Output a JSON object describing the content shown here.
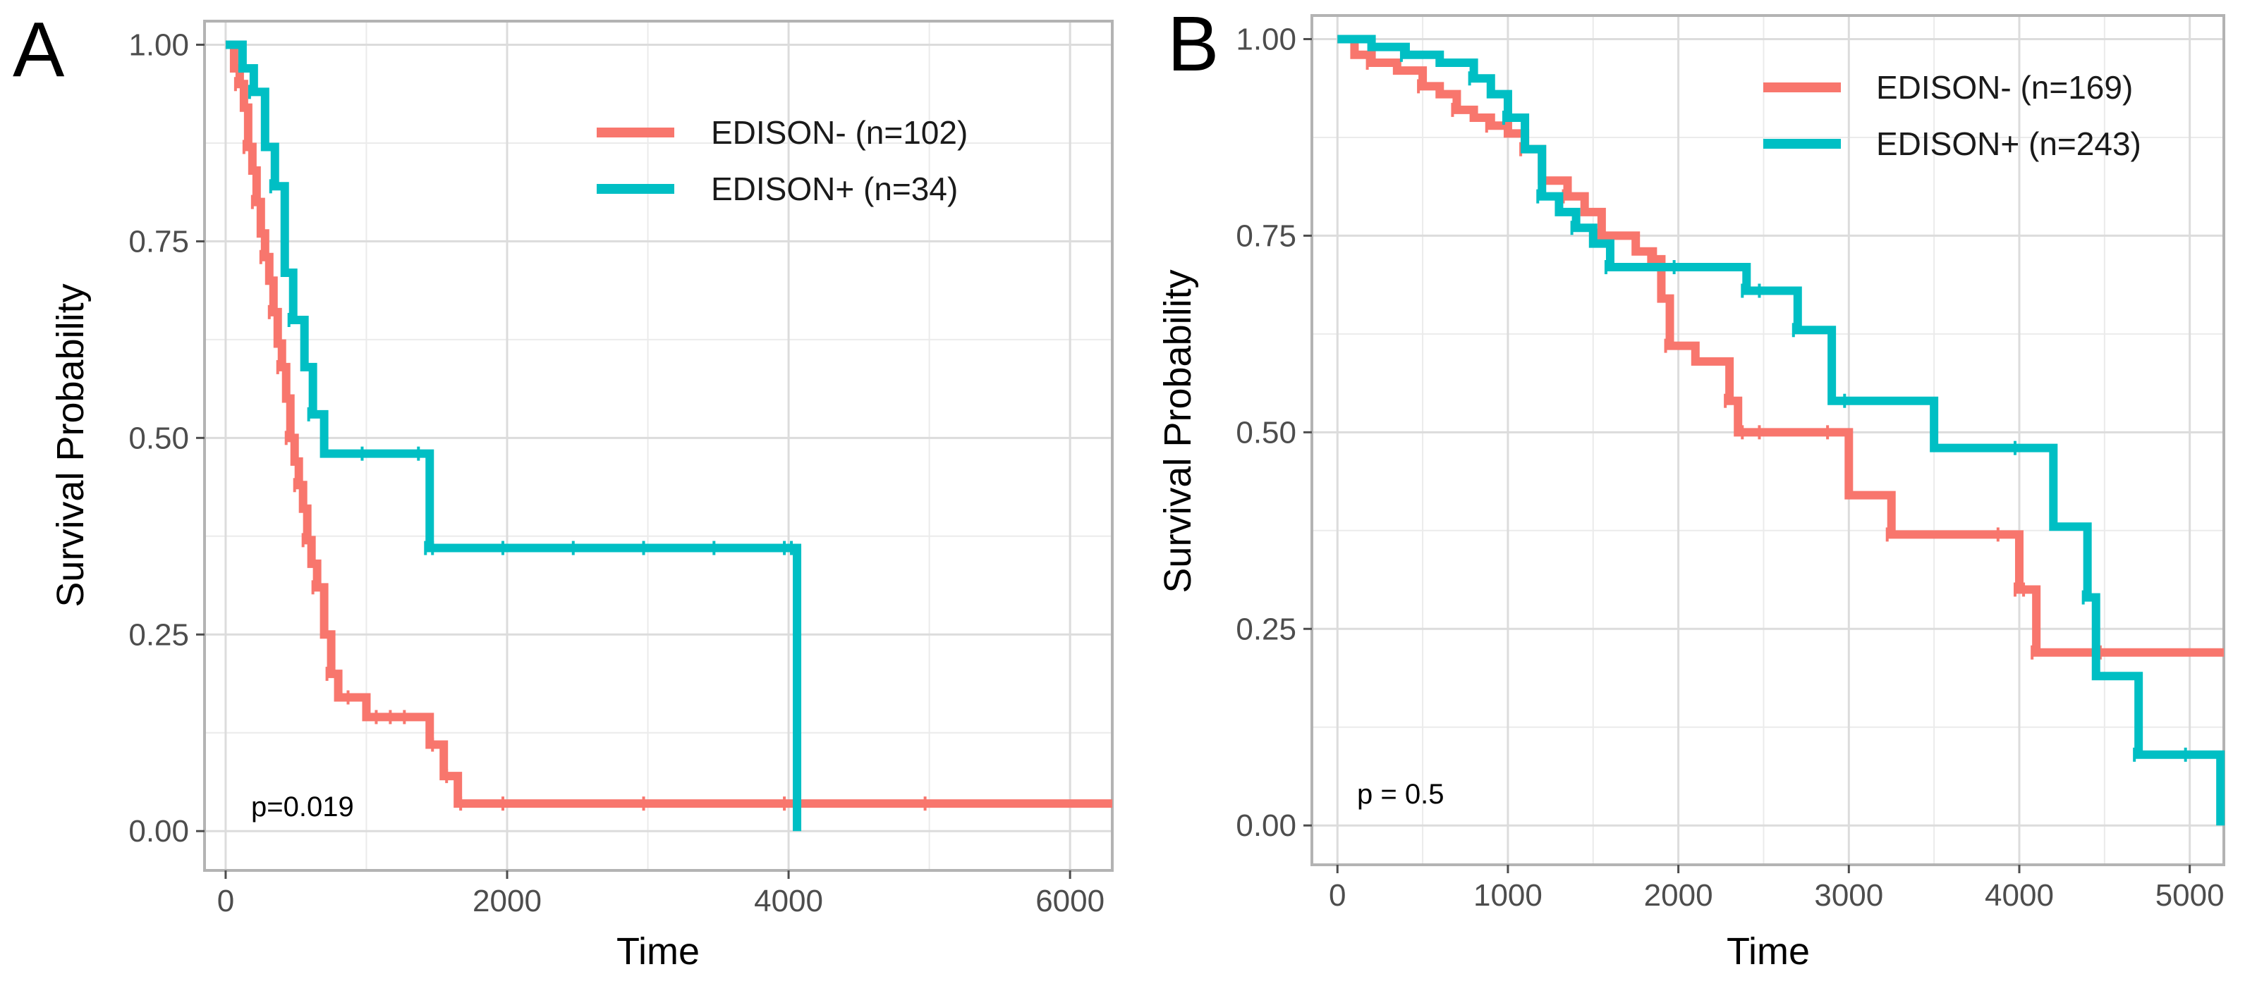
{
  "chart_data": [
    {
      "panel": "A",
      "type": "line",
      "subtype": "kaplan-meier step",
      "xlabel": "Time",
      "ylabel": "Survival Probability",
      "xlim": [
        -150,
        6300
      ],
      "ylim": [
        -0.05,
        1.03
      ],
      "xticks": [
        0,
        2000,
        4000,
        6000
      ],
      "xtick_labels": [
        "0",
        "2000",
        "4000",
        "6000"
      ],
      "yticks": [
        0,
        0.25,
        0.5,
        0.75,
        1
      ],
      "ytick_labels": [
        "0.00",
        "0.25",
        "0.50",
        "0.75",
        "1.00"
      ],
      "grid": true,
      "legend_position": "top-right",
      "pvalue": "p=0.019",
      "series": [
        {
          "name": "EDISON- (n=102)",
          "color": "#F8766D",
          "x": [
            0,
            60,
            100,
            130,
            160,
            190,
            220,
            250,
            280,
            310,
            340,
            370,
            400,
            430,
            460,
            490,
            520,
            550,
            580,
            610,
            650,
            700,
            750,
            800,
            900,
            1000,
            1100,
            1200,
            1300,
            1450,
            1500,
            1550,
            1600,
            1650,
            1700,
            2000,
            3000,
            4000,
            5000,
            6300
          ],
          "y": [
            1.0,
            0.97,
            0.95,
            0.92,
            0.87,
            0.84,
            0.8,
            0.76,
            0.73,
            0.7,
            0.66,
            0.62,
            0.59,
            0.55,
            0.5,
            0.47,
            0.44,
            0.41,
            0.37,
            0.34,
            0.31,
            0.25,
            0.2,
            0.17,
            0.17,
            0.145,
            0.145,
            0.145,
            0.145,
            0.11,
            0.11,
            0.07,
            0.07,
            0.035,
            0.035,
            0.035,
            0.035,
            0.035,
            0.035,
            0.035
          ]
        },
        {
          "name": "EDISON+ (n=34)",
          "color": "#00BFC4",
          "x": [
            0,
            120,
            200,
            280,
            350,
            420,
            480,
            560,
            620,
            700,
            1000,
            1400,
            1450,
            1500,
            2000,
            2500,
            3000,
            3500,
            4000,
            4050,
            4060
          ],
          "y": [
            1.0,
            0.97,
            0.94,
            0.87,
            0.82,
            0.71,
            0.65,
            0.59,
            0.53,
            0.48,
            0.48,
            0.48,
            0.36,
            0.36,
            0.36,
            0.36,
            0.36,
            0.36,
            0.36,
            0.36,
            0.0
          ]
        }
      ]
    },
    {
      "panel": "B",
      "type": "line",
      "subtype": "kaplan-meier step",
      "xlabel": "Time",
      "ylabel": "Survival Probability",
      "xlim": [
        -150,
        5200
      ],
      "ylim": [
        -0.05,
        1.03
      ],
      "xticks": [
        0,
        1000,
        2000,
        3000,
        4000,
        5000
      ],
      "xtick_labels": [
        "0",
        "1000",
        "2000",
        "3000",
        "4000",
        "5000"
      ],
      "yticks": [
        0,
        0.25,
        0.5,
        0.75,
        1
      ],
      "ytick_labels": [
        "0.00",
        "0.25",
        "0.50",
        "0.75",
        "1.00"
      ],
      "grid": true,
      "legend_position": "top-right",
      "pvalue": "p = 0.5",
      "series": [
        {
          "name": "EDISON- (n=169)",
          "color": "#F8766D",
          "x": [
            0,
            100,
            200,
            350,
            500,
            600,
            700,
            800,
            900,
            1000,
            1100,
            1200,
            1350,
            1450,
            1550,
            1750,
            1850,
            1900,
            1950,
            2100,
            2300,
            2350,
            2400,
            2500,
            2900,
            3000,
            3250,
            3900,
            4000,
            4050,
            4100,
            4500,
            5200
          ],
          "y": [
            1.0,
            0.98,
            0.97,
            0.96,
            0.94,
            0.93,
            0.91,
            0.9,
            0.89,
            0.88,
            0.86,
            0.82,
            0.8,
            0.78,
            0.75,
            0.73,
            0.72,
            0.67,
            0.61,
            0.59,
            0.54,
            0.5,
            0.5,
            0.5,
            0.5,
            0.42,
            0.37,
            0.37,
            0.3,
            0.3,
            0.22,
            0.22,
            0.22
          ]
        },
        {
          "name": "EDISON+ (n=243)",
          "color": "#00BFC4",
          "x": [
            0,
            200,
            400,
            600,
            800,
            900,
            1000,
            1100,
            1200,
            1300,
            1400,
            1500,
            1600,
            2000,
            2400,
            2500,
            2700,
            2900,
            3000,
            3500,
            4000,
            4200,
            4400,
            4450,
            4700,
            5000,
            5180
          ],
          "y": [
            1.0,
            0.99,
            0.98,
            0.97,
            0.95,
            0.93,
            0.9,
            0.86,
            0.8,
            0.78,
            0.76,
            0.74,
            0.71,
            0.71,
            0.68,
            0.68,
            0.63,
            0.54,
            0.54,
            0.48,
            0.48,
            0.38,
            0.29,
            0.19,
            0.09,
            0.09,
            0.0
          ]
        }
      ]
    }
  ]
}
